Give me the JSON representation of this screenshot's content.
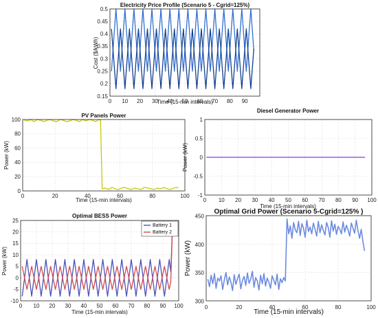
{
  "chart_data": [
    {
      "id": "price",
      "type": "line",
      "title": "Electricity Price Profile (Scenario 5 - Cgrid=125%)",
      "xlabel": "Time (15-min intervals)",
      "ylabel": "Cost ($/kWh)",
      "xlim": [
        0,
        100
      ],
      "ylim": [
        0.15,
        0.5
      ],
      "xticks": [
        0,
        10,
        20,
        30,
        40,
        50,
        60,
        70,
        80,
        90
      ],
      "yticks": [
        0.15,
        0.2,
        0.25,
        0.3,
        0.35,
        0.4,
        0.45,
        0.5
      ],
      "grid": true,
      "series": [
        {
          "color": "#2f6fd0",
          "pattern": {
            "kind": "tri",
            "period": 6,
            "min": 0.25,
            "max": 0.5,
            "phase": 0
          },
          "x_range": [
            1,
            96
          ]
        },
        {
          "color": "#123f8f",
          "pattern": {
            "kind": "tri",
            "period": 6,
            "min": 0.18,
            "max": 0.42,
            "phase": 3
          },
          "x_range": [
            1,
            96
          ]
        }
      ]
    },
    {
      "id": "pv",
      "type": "line",
      "title": "PV Panels Power",
      "xlabel": "Time (15-min intervals)",
      "ylabel": "Power (kW)",
      "xlim": [
        0,
        100
      ],
      "ylim": [
        0,
        100
      ],
      "xticks": [
        0,
        20,
        40,
        60,
        80,
        100
      ],
      "yticks": [
        0,
        20,
        40,
        60,
        80,
        100
      ],
      "grid": true,
      "series": [
        {
          "color": "#c8c800",
          "x": [
            1,
            3,
            5,
            7,
            9,
            11,
            13,
            15,
            17,
            19,
            21,
            23,
            25,
            27,
            29,
            31,
            33,
            35,
            37,
            39,
            41,
            43,
            45,
            47,
            48,
            49,
            51,
            53,
            55,
            57,
            59,
            61,
            63,
            65,
            67,
            69,
            71,
            73,
            75,
            77,
            79,
            81,
            83,
            85,
            87,
            89,
            91,
            93,
            95,
            96
          ],
          "y": [
            99,
            98,
            100,
            97,
            100,
            99,
            97,
            99,
            100,
            98,
            97,
            100,
            99,
            97,
            98,
            100,
            99,
            97,
            100,
            98,
            100,
            99,
            97,
            100,
            99,
            3,
            4,
            2,
            5,
            3,
            2,
            4,
            5,
            3,
            2,
            4,
            3,
            2,
            5,
            4,
            3,
            2,
            4,
            3,
            5,
            3,
            2,
            4,
            5,
            4
          ]
        }
      ]
    },
    {
      "id": "diesel",
      "type": "line",
      "title": "Diesel Generator Power",
      "xlabel": "Time (15-min intervals)",
      "ylabel": "Power (kW)",
      "xlim": [
        0,
        100
      ],
      "ylim": [
        -1,
        1
      ],
      "xticks": [
        0,
        10,
        20,
        30,
        40,
        50,
        60,
        70,
        80,
        90,
        100
      ],
      "yticks": [
        -1,
        -0.5,
        0,
        0.5,
        1
      ],
      "grid": true,
      "series": [
        {
          "color": "#7b3fe4",
          "x": [
            1,
            96
          ],
          "y": [
            0,
            0
          ]
        }
      ]
    },
    {
      "id": "bess",
      "type": "line",
      "title": "Optimal BESS Power",
      "xlabel": "Time (15-min intervals)",
      "ylabel": "Power (kW)",
      "xlim": [
        0,
        100
      ],
      "ylim": [
        -10,
        25
      ],
      "xticks": [
        0,
        10,
        20,
        30,
        40,
        50,
        60,
        70,
        80,
        90,
        100
      ],
      "yticks": [
        -10,
        -5,
        0,
        5,
        10,
        15,
        20,
        25
      ],
      "grid": true,
      "legend": "top-right",
      "series": [
        {
          "name": "Battery 1",
          "color": "#4a4fb8",
          "pattern": {
            "kind": "tri",
            "period": 6,
            "min": -8,
            "max": 8,
            "phase": 0
          },
          "x_range": [
            1,
            95
          ],
          "end": [
            96,
            21
          ]
        },
        {
          "name": "Battery 2",
          "color": "#d24a4a",
          "pattern": {
            "kind": "tri",
            "period": 6,
            "min": -5,
            "max": 5,
            "phase": 3
          },
          "x_range": [
            1,
            95
          ],
          "end": [
            96,
            21
          ]
        }
      ]
    },
    {
      "id": "grid",
      "type": "line",
      "title": "Optimal Grid Power (Scenario 5-Cgrid=125%  )",
      "xlabel": "Time (15-min intervals)",
      "ylabel": "Power (kW)",
      "xlim": [
        0,
        100
      ],
      "ylim": [
        300,
        450
      ],
      "xticks": [
        0,
        20,
        40,
        60,
        80,
        100
      ],
      "yticks": [
        300,
        350,
        400,
        450
      ],
      "grid": true,
      "series": [
        {
          "color": "#6b8be0",
          "x": [
            1,
            2,
            3,
            4,
            5,
            6,
            7,
            8,
            9,
            10,
            11,
            12,
            13,
            14,
            15,
            16,
            17,
            18,
            19,
            20,
            21,
            22,
            23,
            24,
            25,
            26,
            27,
            28,
            29,
            30,
            31,
            32,
            33,
            34,
            35,
            36,
            37,
            38,
            39,
            40,
            41,
            42,
            43,
            44,
            45,
            46,
            47,
            48,
            49,
            50,
            51,
            52,
            53,
            54,
            55,
            56,
            57,
            58,
            59,
            60,
            61,
            62,
            63,
            64,
            65,
            66,
            67,
            68,
            69,
            70,
            71,
            72,
            73,
            74,
            75,
            76,
            77,
            78,
            79,
            80,
            81,
            82,
            83,
            84,
            85,
            86,
            87,
            88,
            89,
            90,
            91,
            92,
            93,
            94,
            95,
            96
          ],
          "y": [
            338,
            325,
            345,
            330,
            348,
            322,
            340,
            335,
            344,
            320,
            337,
            350,
            328,
            342,
            333,
            318,
            346,
            329,
            339,
            347,
            321,
            336,
            343,
            327,
            349,
            331,
            338,
            352,
            324,
            341,
            335,
            319,
            345,
            330,
            348,
            326,
            340,
            333,
            322,
            344,
            336,
            328,
            347,
            320,
            339,
            332,
            341,
            335,
            444,
            418,
            432,
            410,
            438,
            425,
            420,
            440,
            415,
            436,
            428,
            412,
            442,
            422,
            430,
            418,
            437,
            426,
            414,
            440,
            420,
            434,
            424,
            416,
            438,
            429,
            412,
            441,
            423,
            435,
            417,
            431,
            426,
            418,
            439,
            421,
            433,
            425,
            414,
            437,
            428,
            419,
            442,
            424,
            410,
            426,
            405,
            388
          ]
        }
      ]
    }
  ]
}
